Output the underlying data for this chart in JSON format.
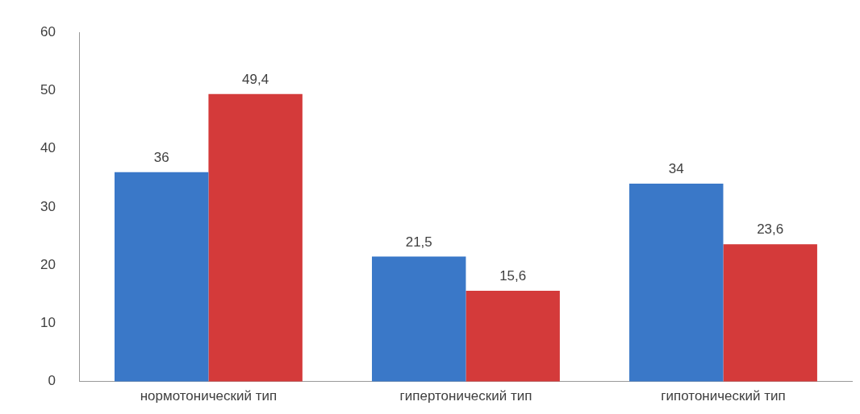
{
  "chart_data": {
    "type": "bar",
    "categories": [
      "нормотонический тип",
      "гипертонический тип",
      "гипотонический тип"
    ],
    "series": [
      {
        "color": "#3a78c8",
        "values": [
          36,
          21.5,
          34
        ],
        "value_labels": [
          "36",
          "21,5",
          "34"
        ]
      },
      {
        "color": "#d43a3a",
        "values": [
          49.4,
          15.6,
          23.6
        ],
        "value_labels": [
          "49,4",
          "15,6",
          "23,6"
        ]
      }
    ],
    "ylim": [
      0,
      60
    ],
    "yticks": [
      0,
      10,
      20,
      30,
      40,
      50,
      60
    ]
  }
}
